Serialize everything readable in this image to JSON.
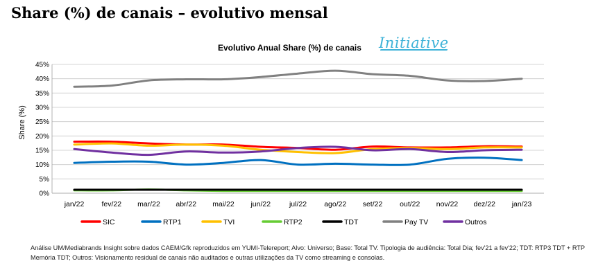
{
  "page_title": "Share (%) de canais – evolutivo mensal",
  "logo_text": "Initiative",
  "footnote": "Análise UM/Mediabrands Insight sobre dados CAEM/Gfk reproduzidos em YUMI-Telereport; Alvo: Universo; Base: Total TV. Tipologia de audiência: Total Dia; fev'21 a fev'22; TDT: RTP3 TDT + RTP Memória TDT; Outros: Visionamento residual de canais não auditados e outras utilizações da TV como streaming e consolas.",
  "chart_data": {
    "type": "line",
    "title": "Evolutivo Anual Share (%) de canais",
    "ylabel": "Share (%)",
    "xlabel": "",
    "ylim": [
      0,
      45
    ],
    "yticks": [
      "0%",
      "5%",
      "10%",
      "15%",
      "20%",
      "25%",
      "30%",
      "35%",
      "40%",
      "45%"
    ],
    "grid": true,
    "legend_position": "bottom",
    "categories": [
      "jan/22",
      "fev/22",
      "mar/22",
      "abr/22",
      "mai/22",
      "jun/22",
      "jul/22",
      "ago/22",
      "set/22",
      "out/22",
      "nov/22",
      "dez/22",
      "jan/23"
    ],
    "series": [
      {
        "name": "SIC",
        "color": "#ff0000",
        "values": [
          18.0,
          18.0,
          17.4,
          17.0,
          17.0,
          16.2,
          15.8,
          15.2,
          16.3,
          16.0,
          16.0,
          16.4,
          16.3
        ]
      },
      {
        "name": "RTP1",
        "color": "#0070c0",
        "values": [
          10.6,
          11.0,
          11.0,
          10.0,
          10.6,
          11.6,
          10.0,
          10.3,
          10.0,
          10.0,
          12.0,
          12.4,
          11.6
        ]
      },
      {
        "name": "TVI",
        "color": "#ffc000",
        "values": [
          17.0,
          17.4,
          16.6,
          17.0,
          16.6,
          15.2,
          14.4,
          14.0,
          15.4,
          15.8,
          15.4,
          16.0,
          16.0
        ]
      },
      {
        "name": "RTP2",
        "color": "#66cc33",
        "values": [
          1.0,
          1.0,
          1.3,
          1.0,
          0.8,
          0.8,
          0.8,
          0.8,
          0.8,
          0.8,
          0.8,
          0.8,
          0.8
        ]
      },
      {
        "name": "TDT",
        "color": "#000000",
        "values": [
          1.2,
          1.2,
          1.2,
          1.2,
          1.2,
          1.2,
          1.2,
          1.2,
          1.2,
          1.2,
          1.2,
          1.2,
          1.2
        ]
      },
      {
        "name": "Pay TV",
        "color": "#808080",
        "values": [
          37.2,
          37.6,
          39.4,
          39.8,
          39.8,
          40.6,
          41.8,
          42.8,
          41.6,
          41.0,
          39.4,
          39.2,
          40.0
        ]
      },
      {
        "name": "Outros",
        "color": "#7030a0",
        "values": [
          15.4,
          14.2,
          13.4,
          14.6,
          14.2,
          14.6,
          15.8,
          16.2,
          15.0,
          15.4,
          14.4,
          15.0,
          15.2
        ]
      }
    ]
  }
}
